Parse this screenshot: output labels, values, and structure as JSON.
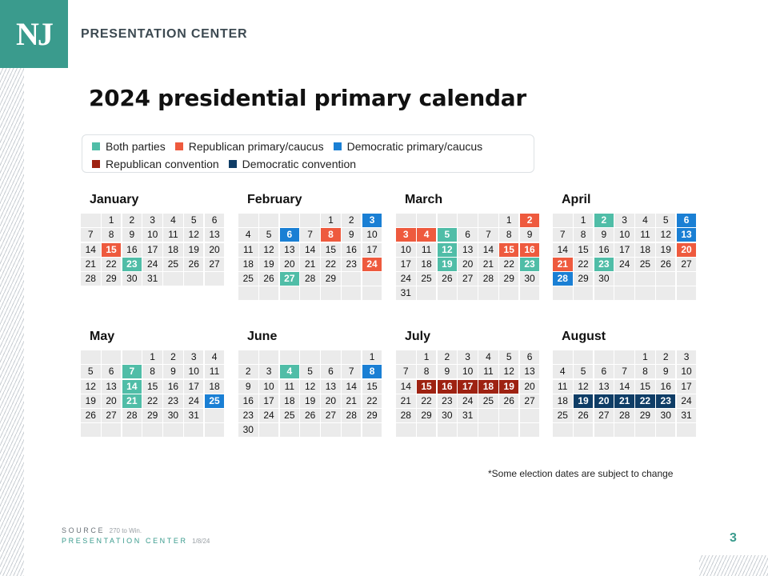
{
  "brand": {
    "logo": "NJ",
    "name": "PRESENTATION CENTER"
  },
  "title": "2024 presidential primary calendar",
  "legend": [
    {
      "label": "Both parties",
      "key": "both",
      "color": "#50bda7"
    },
    {
      "label": "Republican primary/caucus",
      "key": "rep",
      "color": "#ee5a3e"
    },
    {
      "label": "Democratic primary/caucus",
      "key": "dem",
      "color": "#1a7fd4"
    },
    {
      "label": "Republican convention",
      "key": "repconv",
      "color": "#9e2212"
    },
    {
      "label": "Democratic convention",
      "key": "demconv",
      "color": "#0f3d66"
    }
  ],
  "months": [
    {
      "name": "January",
      "offset": 1,
      "days": 31,
      "rows": 5,
      "highlights": {
        "15": "rep",
        "23": "both"
      }
    },
    {
      "name": "February",
      "offset": 4,
      "days": 29,
      "rows": 6,
      "highlights": {
        "3": "dem",
        "6": "dem",
        "8": "rep",
        "24": "rep",
        "27": "both"
      }
    },
    {
      "name": "March",
      "offset": 5,
      "days": 31,
      "rows": 6,
      "highlights": {
        "2": "rep",
        "3": "rep",
        "4": "rep",
        "5": "both",
        "12": "both",
        "15": "rep",
        "16": "rep",
        "19": "both",
        "23": "both"
      }
    },
    {
      "name": "April",
      "offset": 1,
      "days": 30,
      "rows": 6,
      "highlights": {
        "2": "both",
        "6": "dem",
        "13": "dem",
        "20": "rep",
        "21": "rep",
        "23": "both",
        "28": "dem"
      }
    },
    {
      "name": "May",
      "offset": 3,
      "days": 31,
      "rows": 6,
      "highlights": {
        "7": "both",
        "14": "both",
        "21": "both",
        "25": "dem"
      }
    },
    {
      "name": "June",
      "offset": 6,
      "days": 30,
      "rows": 6,
      "highlights": {
        "4": "both",
        "8": "dem"
      }
    },
    {
      "name": "July",
      "offset": 1,
      "days": 31,
      "rows": 6,
      "highlights": {
        "15": "repconv",
        "16": "repconv",
        "17": "repconv",
        "18": "repconv",
        "19": "repconv"
      }
    },
    {
      "name": "August",
      "offset": 4,
      "days": 31,
      "rows": 6,
      "highlights": {
        "19": "demconv",
        "20": "demconv",
        "21": "demconv",
        "22": "demconv",
        "23": "demconv"
      }
    }
  ],
  "footnote": "*Some election dates are subject to change",
  "source": {
    "label": "SOURCE",
    "text": "270 to Win."
  },
  "credit": {
    "label": "PRESENTATION CENTER",
    "date": "1/8/24"
  },
  "page_number": "3"
}
